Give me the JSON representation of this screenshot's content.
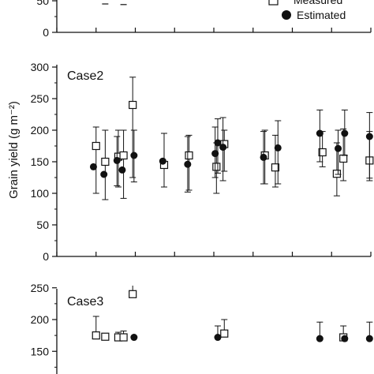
{
  "colors": {
    "ink": "#111111",
    "background": "#ffffff"
  },
  "legend": {
    "placement": "top-right",
    "entries": [
      {
        "label": "Measured",
        "marker": "open-square"
      },
      {
        "label": "Estimated",
        "marker": "filled-circle"
      }
    ]
  },
  "chart_data": [
    {
      "type": "scatter",
      "title": "",
      "xlabel": "",
      "ylabel": "",
      "ylim": [
        0,
        300
      ],
      "xlim": [
        0,
        12
      ],
      "yticks": [
        "0",
        "50"
      ],
      "visible_ticks": [
        "0",
        "50"
      ],
      "grid": false,
      "note": "panel cropped at top; only lower portion visible",
      "series": [
        {
          "name": "Measured",
          "marker": "open-square",
          "points": []
        },
        {
          "name": "Estimated",
          "marker": "filled-circle",
          "points": []
        }
      ],
      "error_caps": [
        {
          "x": 1.85,
          "y": 45
        },
        {
          "x": 2.55,
          "y": 44
        }
      ]
    },
    {
      "type": "scatter",
      "title": "",
      "panel_label": "Case2",
      "xlabel": "",
      "ylabel": "Grain yield (g m⁻²)",
      "ylim": [
        0,
        300
      ],
      "xlim": [
        0,
        12
      ],
      "yticks": [
        "0",
        "50",
        "100",
        "150",
        "200",
        "250",
        "300"
      ],
      "grid": false,
      "series": [
        {
          "name": "Measured",
          "marker": "open-square",
          "points": [
            {
              "x": 1.5,
              "y": 175,
              "lo": 100,
              "hi": 205
            },
            {
              "x": 1.85,
              "y": 150,
              "lo": 90,
              "hi": 200
            },
            {
              "x": 2.35,
              "y": 158,
              "lo": 110,
              "hi": 200
            },
            {
              "x": 2.55,
              "y": 160,
              "lo": 92,
              "hi": 200
            },
            {
              "x": 2.9,
              "y": 240,
              "lo": 125,
              "hi": 284
            },
            {
              "x": 4.1,
              "y": 145,
              "lo": 110,
              "hi": 195
            },
            {
              "x": 5.05,
              "y": 160,
              "lo": 105,
              "hi": 192
            },
            {
              "x": 6.1,
              "y": 142,
              "lo": 100,
              "hi": 180
            },
            {
              "x": 6.4,
              "y": 178,
              "lo": 135,
              "hi": 200
            },
            {
              "x": 7.95,
              "y": 160,
              "lo": 115,
              "hi": 200
            },
            {
              "x": 8.35,
              "y": 141,
              "lo": 110,
              "hi": 192
            },
            {
              "x": 10.15,
              "y": 165,
              "lo": 142,
              "hi": 198
            },
            {
              "x": 10.7,
              "y": 131,
              "lo": 96,
              "hi": 180
            },
            {
              "x": 10.95,
              "y": 155,
              "lo": 120,
              "hi": 202
            },
            {
              "x": 11.95,
              "y": 152,
              "lo": 120,
              "hi": 198
            }
          ]
        },
        {
          "name": "Estimated",
          "marker": "filled-circle",
          "points": [
            {
              "x": 1.4,
              "y": 142
            },
            {
              "x": 1.8,
              "y": 130
            },
            {
              "x": 2.3,
              "y": 152,
              "lo": 112,
              "hi": 190
            },
            {
              "x": 2.5,
              "y": 137
            },
            {
              "x": 2.95,
              "y": 160,
              "lo": 118,
              "hi": 200
            },
            {
              "x": 4.05,
              "y": 151
            },
            {
              "x": 5.0,
              "y": 146,
              "lo": 102,
              "hi": 190
            },
            {
              "x": 6.05,
              "y": 163,
              "lo": 125,
              "hi": 205
            },
            {
              "x": 6.15,
              "y": 180,
              "lo": 132,
              "hi": 218
            },
            {
              "x": 6.35,
              "y": 173,
              "lo": 120,
              "hi": 220
            },
            {
              "x": 7.9,
              "y": 157,
              "lo": 115,
              "hi": 198
            },
            {
              "x": 8.45,
              "y": 172,
              "lo": 115,
              "hi": 215
            },
            {
              "x": 10.05,
              "y": 195,
              "lo": 150,
              "hi": 232
            },
            {
              "x": 10.75,
              "y": 171,
              "lo": 130,
              "hi": 200
            },
            {
              "x": 11.0,
              "y": 195,
              "lo": 160,
              "hi": 232
            },
            {
              "x": 11.95,
              "y": 190,
              "lo": 124,
              "hi": 228
            }
          ]
        }
      ]
    },
    {
      "type": "scatter",
      "title": "",
      "panel_label": "Case3",
      "xlabel": "",
      "ylabel": "",
      "ylim": [
        0,
        300
      ],
      "xlim": [
        0,
        12
      ],
      "yticks": [
        "150",
        "200",
        "250",
        "300"
      ],
      "grid": false,
      "note": "panel cropped at bottom; only upper portion visible",
      "series": [
        {
          "name": "Measured",
          "marker": "open-square",
          "points": [
            {
              "x": 1.5,
              "y": 175,
              "hi": 205
            },
            {
              "x": 1.85,
              "y": 173
            },
            {
              "x": 2.35,
              "y": 172,
              "hi": 180
            },
            {
              "x": 2.55,
              "y": 172,
              "hi": 182
            },
            {
              "x": 2.9,
              "y": 240,
              "hi": 284
            },
            {
              "x": 6.4,
              "y": 178,
              "hi": 200
            },
            {
              "x": 10.95,
              "y": 172,
              "hi": 190
            }
          ]
        },
        {
          "name": "Estimated",
          "marker": "filled-circle",
          "points": [
            {
              "x": 2.95,
              "y": 172
            },
            {
              "x": 6.15,
              "y": 172,
              "hi": 190
            },
            {
              "x": 10.05,
              "y": 170,
              "hi": 196
            },
            {
              "x": 11.0,
              "y": 170
            },
            {
              "x": 11.95,
              "y": 170,
              "hi": 196
            }
          ]
        }
      ]
    }
  ]
}
